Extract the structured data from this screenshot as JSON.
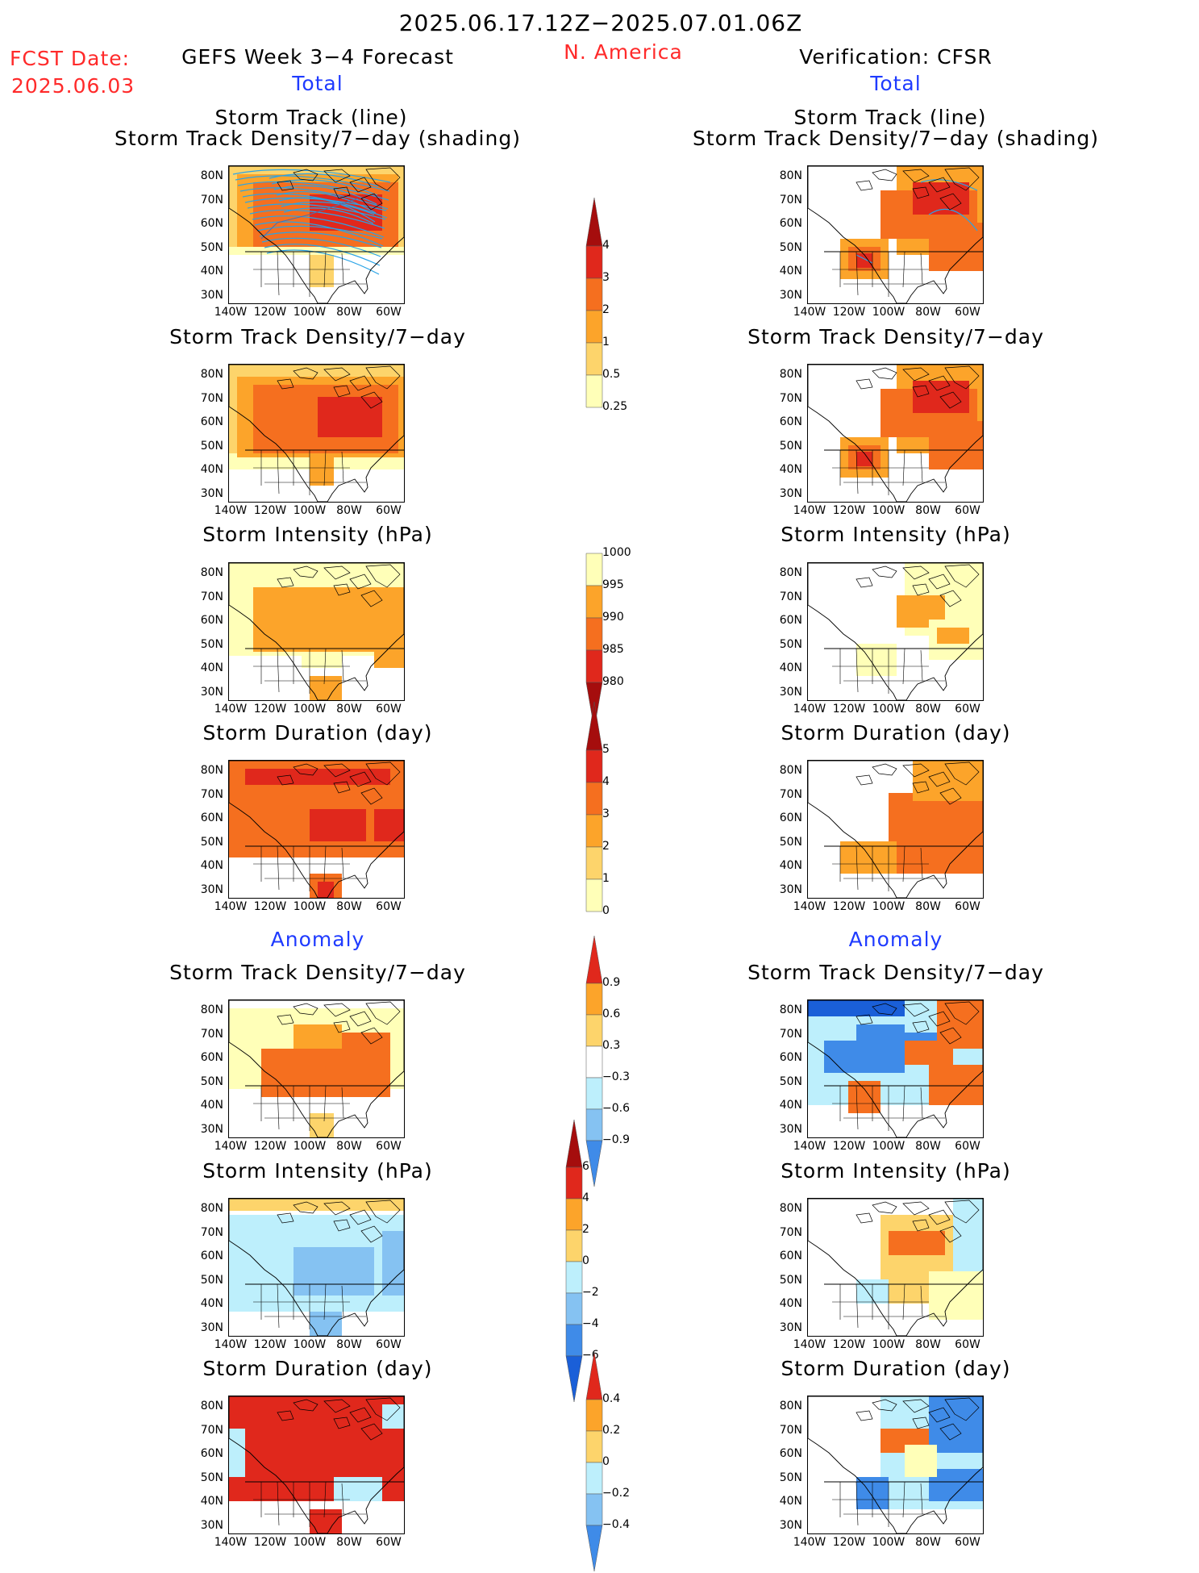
{
  "header": {
    "date_range": "2025.06.17.12Z−2025.07.01.06Z",
    "fcst_label": "FCST Date:",
    "fcst_date": "2025.06.03",
    "forecast_title": "GEFS Week 3−4 Forecast",
    "region": "N. America",
    "verification": "Verification: CFSR"
  },
  "sections": {
    "total": "Total",
    "anomaly": "Anomaly"
  },
  "panels": {
    "track_line_title_1": "Storm Track (line)",
    "track_line_title_2": "Storm Track Density/7−day (shading)",
    "density_title": "Storm Track Density/7−day",
    "intensity_title": "Storm Intensity (hPa)",
    "duration_title": "Storm Duration (day)"
  },
  "axes": {
    "lat_labels": [
      "80N",
      "70N",
      "60N",
      "50N",
      "40N",
      "30N"
    ],
    "lon_labels": [
      "140W",
      "120W",
      "100W",
      "80W",
      "60W"
    ]
  },
  "colorbars": {
    "density_total": [
      "4",
      "3",
      "2",
      "1",
      "0.5",
      "0.25"
    ],
    "intensity_total": [
      "1000",
      "995",
      "990",
      "985",
      "980"
    ],
    "duration_total": [
      "5",
      "4",
      "3",
      "2",
      "1",
      "0"
    ],
    "density_anom": [
      "0.9",
      "0.6",
      "0.3",
      "−0.3",
      "−0.6",
      "−0.9"
    ],
    "intensity_anom": [
      "6",
      "4",
      "2",
      "0",
      "−2",
      "−4",
      "−6"
    ],
    "duration_anom": [
      "0.4",
      "0.2",
      "0",
      "−0.2",
      "−0.4"
    ]
  },
  "colors": {
    "pale_yellow": "#ffffb8",
    "light_orange": "#fdd46b",
    "orange": "#fca42a",
    "dark_orange": "#f56f1f",
    "red": "#e0281c",
    "dark_red": "#a50d0d",
    "light_blue": "#bdeffc",
    "mid_blue": "#85c2f2",
    "blue": "#3f8be8",
    "dark_blue": "#1a5fd8",
    "track_line": "#2aa3e6"
  }
}
